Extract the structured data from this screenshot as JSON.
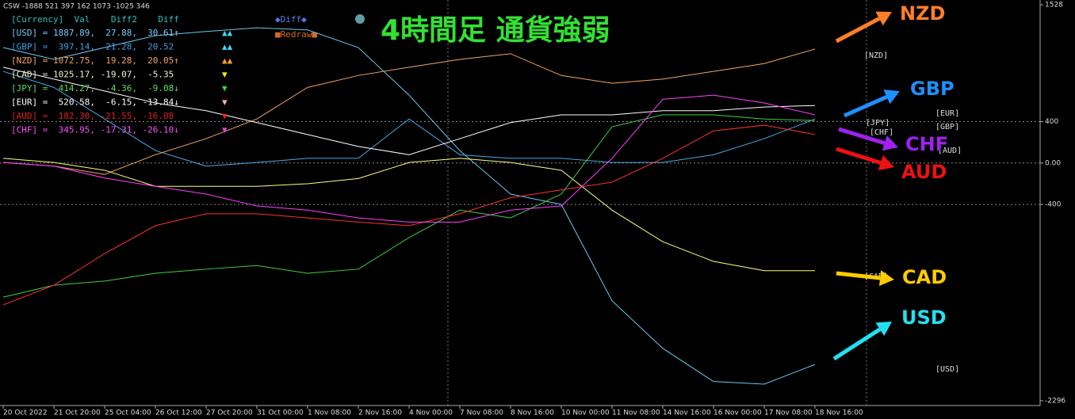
{
  "header_text": "CSW -1888 521 397 162 1073 -1025 346",
  "legend": {
    "header": "[Currency]  Val    Diff2    Diff",
    "rows": [
      {
        "text": "[USD] = 1887.89,  27.88,  30.61↑",
        "marks": "▲▲",
        "color": "#7fc8f8",
        "mark_color": "#3fd6f0"
      },
      {
        "text": "[GBP] =  397.14,  21.28,  20.52",
        "marks": "▲▲",
        "color": "#3ea0e8",
        "mark_color": "#3fd6f0"
      },
      {
        "text": "[NZD] = 1072.75,  19.28,  20.05↑",
        "marks": "▲▲",
        "color": "#f4a460",
        "mark_color": "#ffa030"
      },
      {
        "text": "[CAD] = 1025.17, -19.07,  -5.35",
        "marks": "▼",
        "color": "#f0f0d0",
        "mark_color": "#ffee00"
      },
      {
        "text": "[JPY] =  414.27,  -4.36,  -9.08↓",
        "marks": "▼",
        "color": "#60dd60",
        "mark_color": "#30dd30"
      },
      {
        "text": "[EUR] =  520.58,  -6.15, -13.84↓",
        "marks": "▼",
        "color": "#ffffff",
        "mark_color": "#ffb0b0"
      },
      {
        "text": "[AUD] =  182.30, -21.55, -16.08",
        "marks": "▼",
        "color": "#e02020",
        "mark_color": "#ff2020"
      },
      {
        "text": "[CHF] =  345.95, -17.31, -26.10↓",
        "marks": "▼",
        "color": "#ff50ff",
        "mark_color": "#e040e0"
      }
    ],
    "diff_button": "◆Diff◆",
    "redraw_button": "■Redraw■"
  },
  "chart_data": {
    "type": "line",
    "title": "4時間足 通貨強弱",
    "categories": [
      "20 Oct 2022",
      "21 Oct 20:00",
      "25 Oct 04:00",
      "26 Oct 12:00",
      "27 Oct 20:00",
      "31 Oct 00:00",
      "1 Nov 08:00",
      "2 Nov 16:00",
      "4 Nov 00:00",
      "7 Nov 08:00",
      "8 Nov 16:00",
      "10 Nov 00:00",
      "11 Nov 08:00",
      "14 Nov 16:00",
      "16 Nov 00:00",
      "17 Nov 08:00",
      "18 Nov 16:00"
    ],
    "series": [
      {
        "name": "USD",
        "tag": "[USD]",
        "color": "#6ec6f0",
        "values": [
          1115,
          1000,
          1115,
          1230,
          1270,
          1305,
          1285,
          1115,
          655,
          120,
          -300,
          -400,
          -1330,
          -1790,
          -2110,
          -2135,
          -1945
        ]
      },
      {
        "name": "GBP",
        "tag": "[GBP]",
        "color": "#4aa8e8",
        "values": [
          885,
          730,
          425,
          120,
          -30,
          5,
          45,
          45,
          425,
          80,
          45,
          45,
          5,
          5,
          80,
          235,
          425
        ]
      },
      {
        "name": "NZD",
        "tag": "[NZD]",
        "color": "#f4a460",
        "values": [
          5,
          -30,
          -110,
          80,
          235,
          425,
          730,
          845,
          925,
          1000,
          1055,
          845,
          770,
          810,
          885,
          960,
          1100
        ]
      },
      {
        "name": "CAD",
        "tag": "[CAD]",
        "color": "#ffff80",
        "values": [
          45,
          5,
          -70,
          -225,
          -225,
          -225,
          -200,
          -150,
          5,
          45,
          5,
          -70,
          -455,
          -760,
          -950,
          -1040,
          -1040
        ]
      },
      {
        "name": "JPY",
        "tag": "[JPY]",
        "color": "#40d040",
        "values": [
          -1295,
          -1180,
          -1140,
          -1065,
          -1025,
          -990,
          -1065,
          -1025,
          -720,
          -455,
          -530,
          -300,
          350,
          465,
          465,
          425,
          410
        ]
      },
      {
        "name": "EUR",
        "tag": "[EUR]",
        "color": "#ffffff",
        "values": [
          925,
          810,
          695,
          580,
          505,
          390,
          275,
          160,
          80,
          235,
          390,
          465,
          465,
          505,
          505,
          540,
          555
        ]
      },
      {
        "name": "AUD",
        "tag": "[AUD]",
        "color": "#ff3030",
        "values": [
          -1370,
          -1180,
          -875,
          -605,
          -490,
          -490,
          -530,
          -570,
          -605,
          -490,
          -335,
          -260,
          -185,
          45,
          310,
          365,
          275
        ]
      },
      {
        "name": "CHF",
        "tag": "[CHF]",
        "color": "#ff40ff",
        "values": [
          5,
          -30,
          -145,
          -225,
          -300,
          -415,
          -455,
          -530,
          -570,
          -570,
          -455,
          -415,
          45,
          615,
          655,
          580,
          465
        ]
      }
    ],
    "ylim": [
      -2296,
      1528
    ],
    "yticks": [
      1528,
      400,
      {
        "value": 0,
        "label": "0.00"
      },
      -400,
      -2296
    ],
    "grid": true,
    "annotations": [
      {
        "text": "NZD",
        "color": "#ff7f27"
      },
      {
        "text": "GBP",
        "color": "#1e90ff"
      },
      {
        "text": "CHF",
        "color": "#a020f0"
      },
      {
        "text": "AUD",
        "color": "#ee1111"
      },
      {
        "text": "CAD",
        "color": "#ffcc00"
      },
      {
        "text": "USD",
        "color": "#22e0f0"
      }
    ]
  }
}
